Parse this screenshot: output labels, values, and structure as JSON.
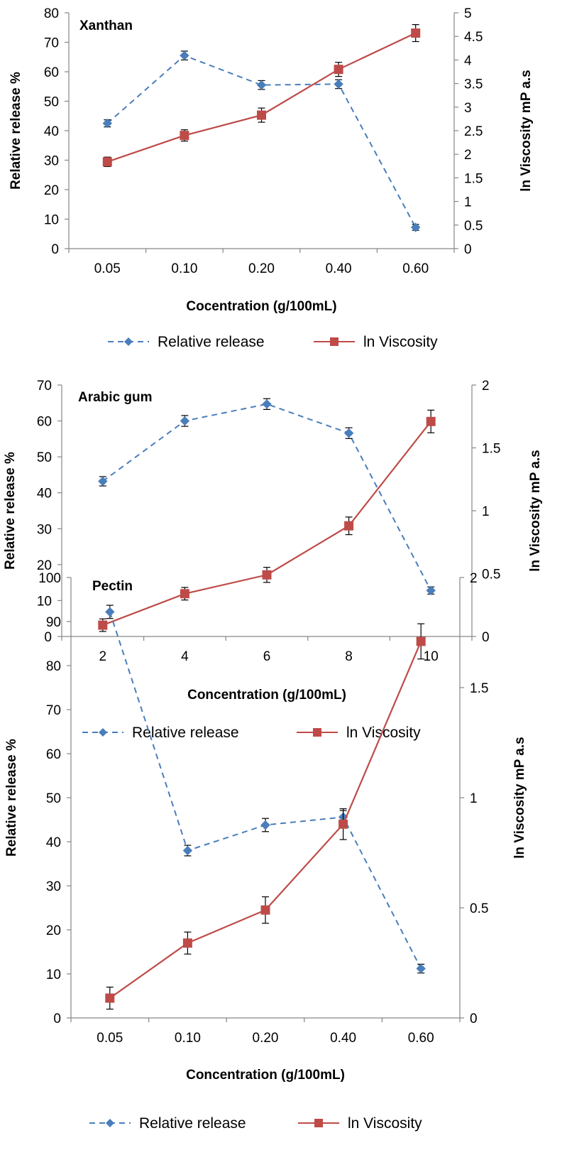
{
  "chart_data": [
    {
      "type": "line",
      "title": "Xanthan",
      "xlabel": "Cocentration (g/100mL)",
      "ylabel": "Relative release %",
      "y2label": "ln Viscosity mP a.s",
      "categories": [
        "0.05",
        "0.10",
        "0.20",
        "0.40",
        "0.60"
      ],
      "ylim": [
        0,
        80
      ],
      "yticks": [
        "0",
        "10",
        "20",
        "30",
        "40",
        "50",
        "60",
        "70",
        "80"
      ],
      "y2lim": [
        0,
        5
      ],
      "y2ticks": [
        "0",
        "0.5",
        "1",
        "1.5",
        "2",
        "2.5",
        "3",
        "3.5",
        "4",
        "4.5",
        "5"
      ],
      "legend_position": "bottom",
      "series": [
        {
          "name": "Relative release",
          "axis": "left",
          "style": "dashed",
          "marker": "diamond",
          "color": "#4a7ebb",
          "values": [
            42.5,
            65.5,
            55.5,
            55.8,
            7.2
          ],
          "errors": [
            1.2,
            1.5,
            1.5,
            1.5,
            1.0
          ]
        },
        {
          "name": "ln Viscosity",
          "axis": "right",
          "style": "solid",
          "marker": "square",
          "color": "#be4b48",
          "values": [
            1.84,
            2.4,
            2.83,
            3.8,
            4.57
          ],
          "errors": [
            0.1,
            0.12,
            0.15,
            0.15,
            0.18
          ]
        }
      ]
    },
    {
      "type": "line",
      "title": "Arabic gum",
      "xlabel": "Concentration (g/100mL)",
      "ylabel": "Relative release %",
      "y2label": "ln Viscosity mP a.s",
      "categories": [
        "2",
        "4",
        "6",
        "8",
        "10"
      ],
      "ylim": [
        0,
        70
      ],
      "yticks": [
        "0",
        "10",
        "20",
        "30",
        "40",
        "50",
        "60",
        "70"
      ],
      "y2lim": [
        0,
        2
      ],
      "y2ticks": [
        "0",
        "0.5",
        "1",
        "1.5",
        "2"
      ],
      "legend_position": "bottom",
      "series": [
        {
          "name": "Relative release",
          "axis": "left",
          "style": "dashed",
          "marker": "diamond",
          "color": "#4a7ebb",
          "values": [
            43.2,
            60.0,
            64.7,
            56.6,
            12.8
          ],
          "errors": [
            1.3,
            1.5,
            1.5,
            1.5,
            1.0
          ]
        },
        {
          "name": "ln Viscosity",
          "axis": "right",
          "style": "solid",
          "marker": "square",
          "color": "#be4b48",
          "values": [
            0.09,
            0.34,
            0.49,
            0.88,
            1.71
          ],
          "errors": [
            0.05,
            0.05,
            0.06,
            0.07,
            0.09
          ]
        }
      ]
    },
    {
      "type": "line",
      "title": "Pectin",
      "xlabel": "Concentration (g/100mL)",
      "ylabel": "Relative release %",
      "y2label": "ln Viscosity mP a.s",
      "categories": [
        "0.05",
        "0.10",
        "0.20",
        "0.40",
        "0.60"
      ],
      "ylim": [
        0,
        100
      ],
      "yticks": [
        "0",
        "10",
        "20",
        "30",
        "40",
        "50",
        "60",
        "70",
        "80",
        "90",
        "100"
      ],
      "y2lim": [
        0,
        2
      ],
      "y2ticks": [
        "0",
        "0.5",
        "1",
        "1.5",
        "2"
      ],
      "legend_position": "bottom",
      "series": [
        {
          "name": "Relative release",
          "axis": "left",
          "style": "dashed",
          "marker": "diamond",
          "color": "#4a7ebb",
          "values": [
            92.2,
            38.0,
            43.8,
            45.6,
            11.2
          ],
          "errors": [
            1.5,
            1.2,
            1.5,
            1.5,
            1.0
          ]
        },
        {
          "name": "ln Viscosity",
          "axis": "right",
          "style": "solid",
          "marker": "square",
          "color": "#be4b48",
          "values": [
            0.09,
            0.34,
            0.49,
            0.88,
            1.71
          ],
          "errors": [
            0.05,
            0.05,
            0.06,
            0.07,
            0.08
          ]
        }
      ]
    }
  ]
}
